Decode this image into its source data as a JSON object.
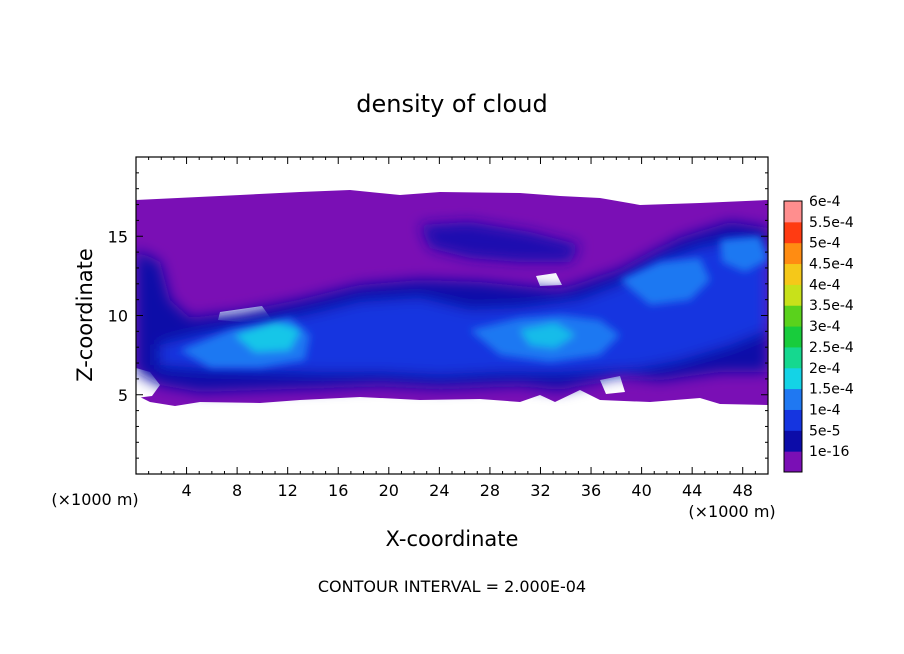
{
  "chart_data": {
    "type": "heatmap",
    "title": "density of cloud",
    "xlabel": "X-coordinate",
    "ylabel": "Z-coordinate",
    "x_unit": "(×1000 m)",
    "y_unit": "(×1000 m)",
    "xlim": [
      0,
      50
    ],
    "ylim": [
      0,
      20
    ],
    "x_ticks": [
      4,
      8,
      12,
      16,
      20,
      24,
      28,
      32,
      36,
      40,
      44,
      48
    ],
    "y_ticks": [
      5,
      10,
      15
    ],
    "footer": "CONTOUR INTERVAL = 2.000E-04",
    "colorbar": {
      "levels": [
        "1e-16",
        "5e-5",
        "1e-4",
        "1.5e-4",
        "2e-4",
        "2.5e-4",
        "3e-4",
        "3.5e-4",
        "4e-4",
        "4.5e-4",
        "5e-4",
        "5.5e-4",
        "6e-4"
      ],
      "colors": [
        "#7a0fb5",
        "#0c0ca8",
        "#1535e0",
        "#1f78f2",
        "#14d3e6",
        "#15d88f",
        "#18cc3c",
        "#5ad21c",
        "#c8e11a",
        "#f5c819",
        "#ff8c12",
        "#ff3b12",
        "#ff8e8e"
      ]
    },
    "cloud_layer": {
      "bottom_km": 4.3,
      "top_km": 17.1,
      "core_bottom_km": 5.2,
      "core_top_km": 11.5
    },
    "cores": [
      {
        "x": 11,
        "z": 8.2,
        "max": 0.0002
      },
      {
        "x": 28,
        "z": 8.8,
        "max": 0.00016
      },
      {
        "x": 32.5,
        "z": 8.3,
        "max": 0.00019
      },
      {
        "x": 42,
        "z": 10.8,
        "max": 0.00016
      },
      {
        "x": 46.5,
        "z": 12.5,
        "max": 0.00015
      }
    ]
  }
}
